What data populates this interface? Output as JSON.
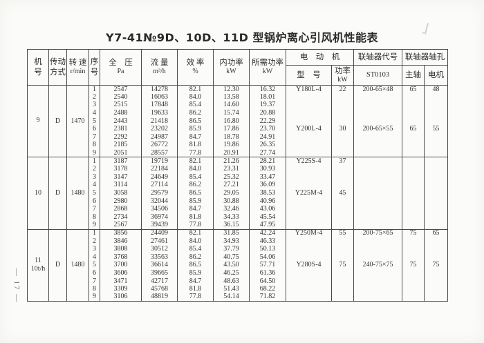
{
  "page": {
    "title": "Y7-41№9D、10D、11D 型锅炉离心引风机性能表",
    "page_number": "— 17 —"
  },
  "table": {
    "headers": {
      "machine": [
        "机",
        "号"
      ],
      "drive": [
        "传动",
        "方式"
      ],
      "speed": [
        "转 速",
        "r/min"
      ],
      "serial": [
        "序",
        "号"
      ],
      "pressure": [
        "全　压",
        "Pa"
      ],
      "flow": [
        "流 量",
        "m³/h"
      ],
      "efficiency": [
        "效 率",
        "%"
      ],
      "inner_power": [
        "内功率",
        "kW"
      ],
      "required_power": [
        "所需功率",
        "kW"
      ],
      "motor_group": "电　动　机",
      "motor_model": "型　号",
      "motor_power": [
        "功率",
        "kW"
      ],
      "coupling_code": "联轴器代号",
      "coupling_code_value": "ST0103",
      "coupling_hole": "联轴器轴孔",
      "main_shaft": "主轴",
      "motor_shaft": "电机"
    },
    "groups": [
      {
        "machine_no": [
          "9"
        ],
        "drive": "D",
        "speed": "1470",
        "rows": [
          [
            "1",
            "2547",
            "14278",
            "82.1",
            "12.30",
            "16.32"
          ],
          [
            "2",
            "2540",
            "16063",
            "84.0",
            "13.58",
            "18.01"
          ],
          [
            "3",
            "2515",
            "17848",
            "85.4",
            "14.60",
            "19.37"
          ],
          [
            "4",
            "2488",
            "19633",
            "86.2",
            "15.74",
            "20.88"
          ],
          [
            "5",
            "2443",
            "21418",
            "86.5",
            "16.80",
            "22.29"
          ],
          [
            "6",
            "2381",
            "23202",
            "85.9",
            "17.86",
            "23.70"
          ],
          [
            "7",
            "2292",
            "24987",
            "84.7",
            "18.78",
            "24.91"
          ],
          [
            "8",
            "2185",
            "26772",
            "81.8",
            "19.86",
            "26.35"
          ],
          [
            "9",
            "2051",
            "28557",
            "77.8",
            "20.91",
            "27.74"
          ]
        ],
        "motor_entries": [
          {
            "row": 1,
            "model": "Y180L-4",
            "power": "22",
            "coupling": "200-65×48",
            "main_shaft": "65",
            "motor_shaft": "48"
          },
          {
            "row": 6,
            "model": "Y200L-4",
            "power": "30",
            "coupling": "200-65×55",
            "main_shaft": "65",
            "motor_shaft": "55"
          }
        ]
      },
      {
        "machine_no": [
          "10"
        ],
        "drive": "D",
        "speed": "1480",
        "rows": [
          [
            "1",
            "3187",
            "19719",
            "82.1",
            "21.26",
            "28.21"
          ],
          [
            "2",
            "3178",
            "22184",
            "84.0",
            "23.31",
            "30.93"
          ],
          [
            "3",
            "3147",
            "24649",
            "85.4",
            "25.32",
            "33.47"
          ],
          [
            "4",
            "3114",
            "27114",
            "86.2",
            "27.21",
            "36.09"
          ],
          [
            "5",
            "3058",
            "29579",
            "86.5",
            "29.05",
            "38.53"
          ],
          [
            "6",
            "2980",
            "32044",
            "85.9",
            "30.88",
            "40.96"
          ],
          [
            "7",
            "2868",
            "34506",
            "84.7",
            "32.46",
            "43.06"
          ],
          [
            "8",
            "2734",
            "36974",
            "81.8",
            "34.33",
            "45.54"
          ],
          [
            "9",
            "2567",
            "39439",
            "77.8",
            "36.15",
            "47.95"
          ]
        ],
        "motor_entries": [
          {
            "row": 1,
            "model": "Y225S-4",
            "power": "37",
            "coupling": "",
            "main_shaft": "",
            "motor_shaft": ""
          },
          {
            "row": 5,
            "model": "Y225M-4",
            "power": "45",
            "coupling": "",
            "main_shaft": "",
            "motor_shaft": ""
          }
        ]
      },
      {
        "machine_no": [
          "11",
          "10t/h"
        ],
        "drive": "D",
        "speed": "1480",
        "rows": [
          [
            "1",
            "3856",
            "24409",
            "82.1",
            "31.85",
            "42.24"
          ],
          [
            "2",
            "3846",
            "27461",
            "84.0",
            "34.93",
            "46.33"
          ],
          [
            "3",
            "3808",
            "30512",
            "85.4",
            "37.79",
            "50.13"
          ],
          [
            "4",
            "3768",
            "33563",
            "86.2",
            "40.75",
            "54.06"
          ],
          [
            "5",
            "3700",
            "36614",
            "86.5",
            "43.50",
            "57.71"
          ],
          [
            "6",
            "3606",
            "39665",
            "85.9",
            "46.25",
            "61.36"
          ],
          [
            "7",
            "3471",
            "42717",
            "84.7",
            "48.63",
            "64.50"
          ],
          [
            "8",
            "3309",
            "45768",
            "81.8",
            "51.43",
            "68.22"
          ],
          [
            "9",
            "3106",
            "48819",
            "77.8",
            "54.14",
            "71.82"
          ]
        ],
        "motor_entries": [
          {
            "row": 1,
            "model": "Y250M-4",
            "power": "55",
            "coupling": "200-75×65",
            "main_shaft": "75",
            "motor_shaft": "65"
          },
          {
            "row": 5,
            "model": "Y280S-4",
            "power": "75",
            "coupling": "240-75×75",
            "main_shaft": "75",
            "motor_shaft": "75"
          }
        ]
      }
    ]
  }
}
